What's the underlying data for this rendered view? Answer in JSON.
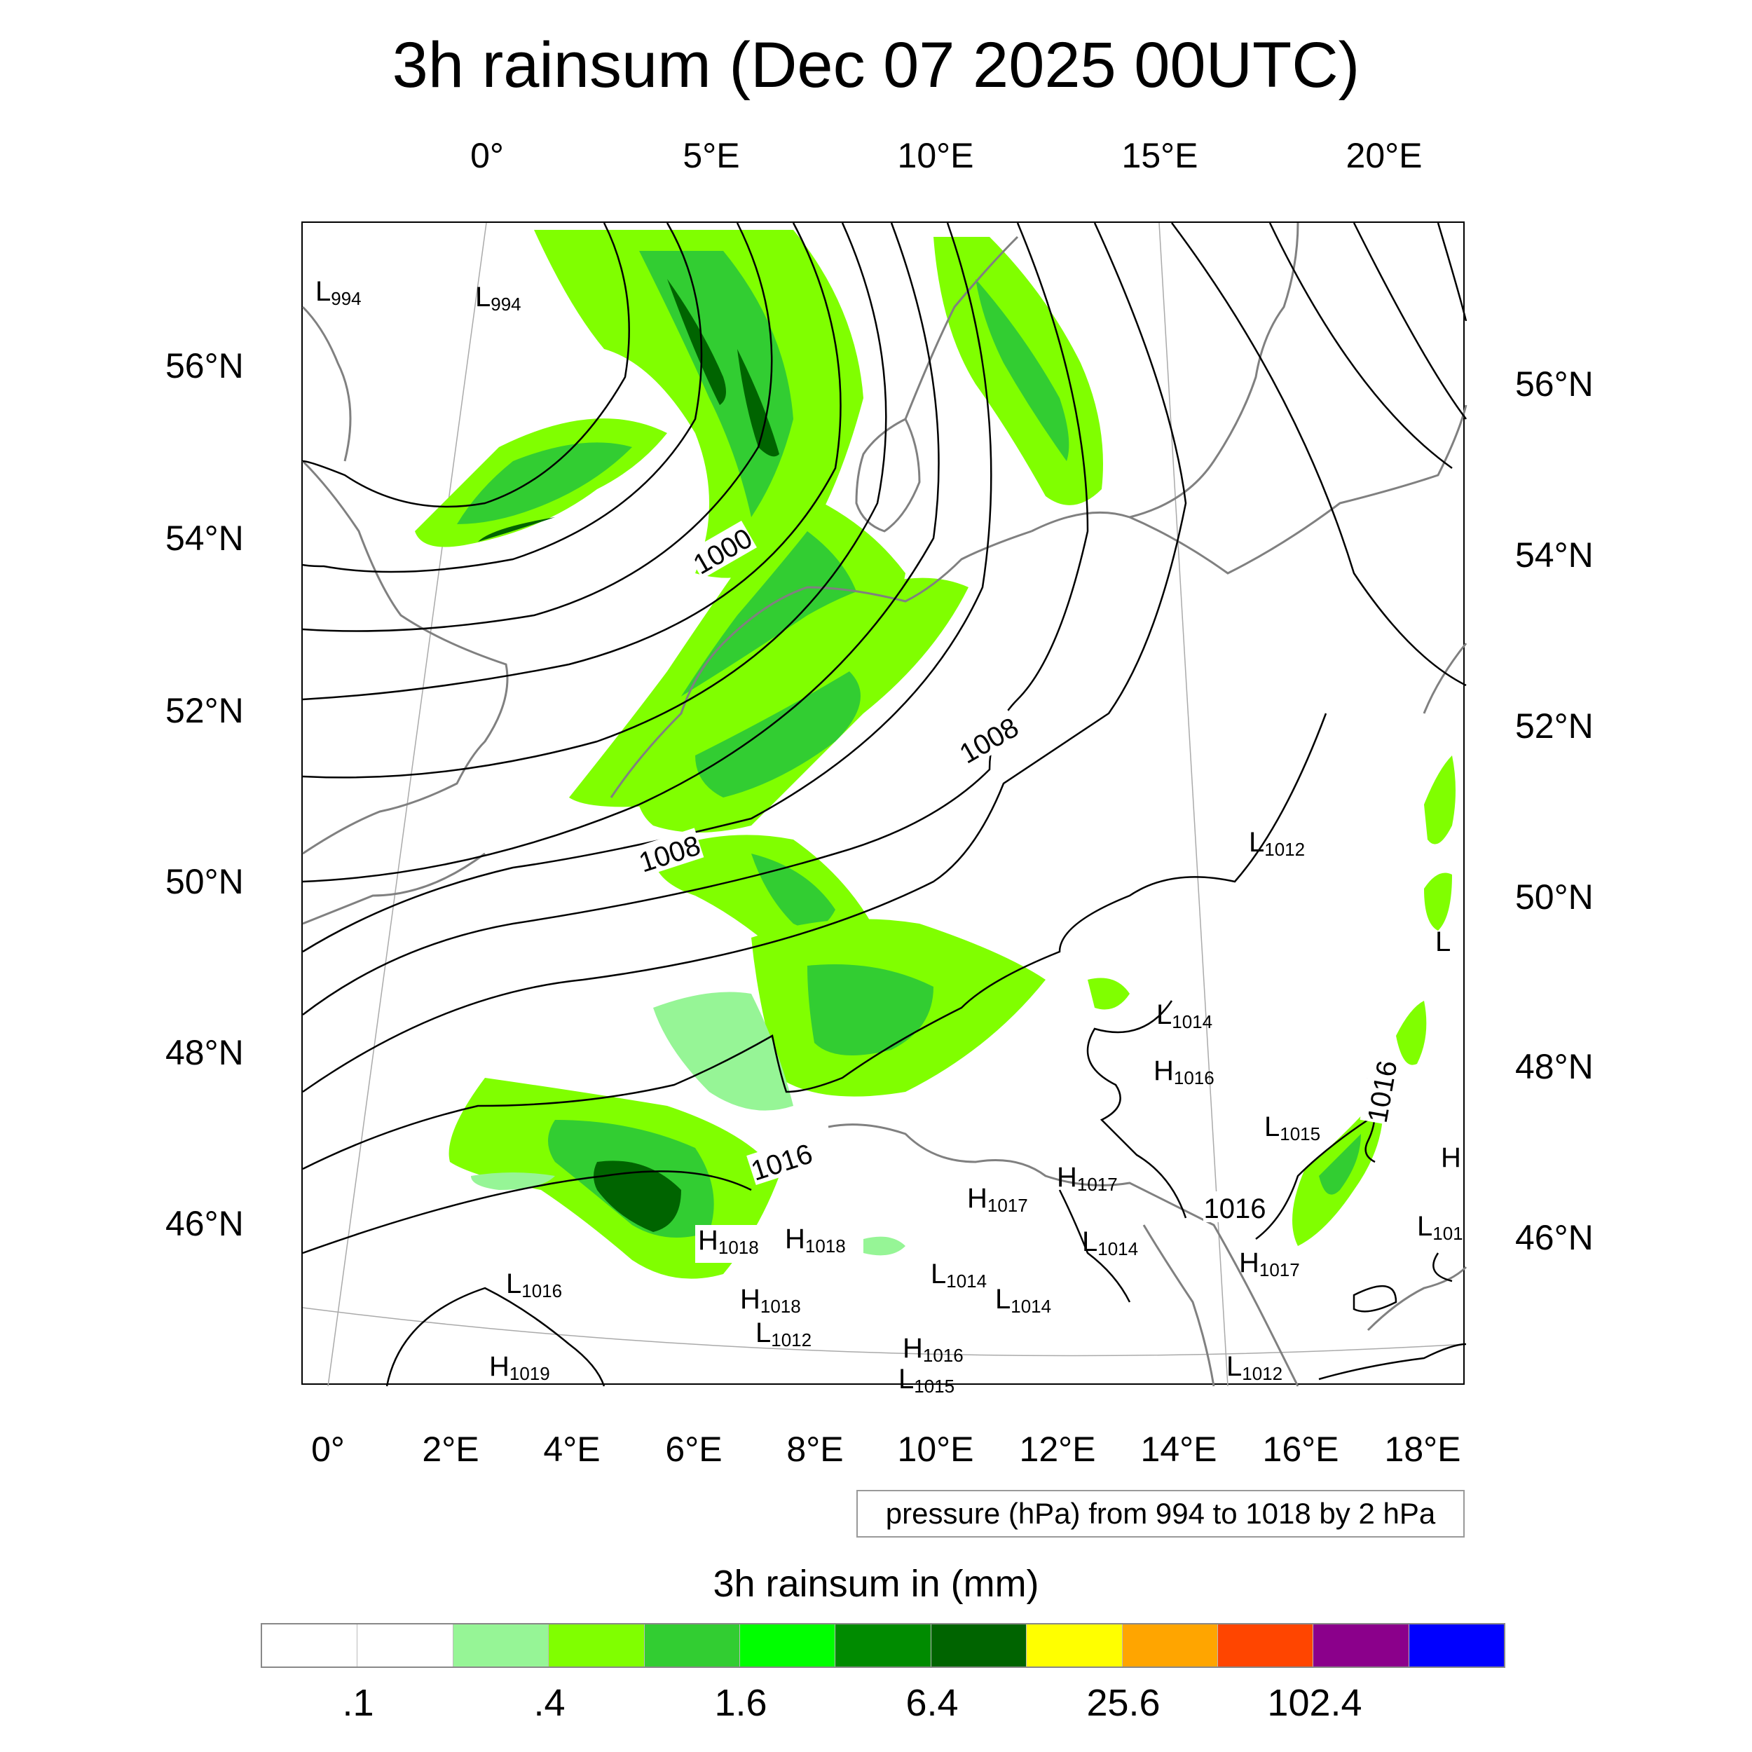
{
  "title": "3h rainsum (Dec 07 2025 00UTC)",
  "top_longitudes": [
    "0°",
    "5°E",
    "10°E",
    "15°E",
    "20°E"
  ],
  "bottom_longitudes": [
    "0°",
    "2°E",
    "4°E",
    "6°E",
    "8°E",
    "10°E",
    "12°E",
    "14°E",
    "16°E",
    "18°E"
  ],
  "left_latitudes": [
    "56°N",
    "54°N",
    "52°N",
    "50°N",
    "48°N",
    "46°N"
  ],
  "right_latitudes": [
    "56°N",
    "54°N",
    "52°N",
    "50°N",
    "48°N",
    "46°N"
  ],
  "isobar_labels": [
    "1000",
    "1008",
    "1008",
    "1016",
    "1016",
    "1016"
  ],
  "pressure_centers": [
    {
      "type": "L",
      "value": "994"
    },
    {
      "type": "L",
      "value": "994"
    },
    {
      "type": "L",
      "value": "1012"
    },
    {
      "type": "L",
      "value": ""
    },
    {
      "type": "L",
      "value": "1014"
    },
    {
      "type": "H",
      "value": "1016"
    },
    {
      "type": "L",
      "value": "1015"
    },
    {
      "type": "H",
      "value": ""
    },
    {
      "type": "H",
      "value": "1017"
    },
    {
      "type": "H",
      "value": "1017"
    },
    {
      "type": "L",
      "value": "1014"
    },
    {
      "type": "L",
      "value": "101"
    },
    {
      "type": "H",
      "value": "1018"
    },
    {
      "type": "H",
      "value": "1018"
    },
    {
      "type": "H",
      "value": "1017"
    },
    {
      "type": "L",
      "value": "1014"
    },
    {
      "type": "L",
      "value": "1014"
    },
    {
      "type": "L",
      "value": "1016"
    },
    {
      "type": "H",
      "value": "1018"
    },
    {
      "type": "L",
      "value": "1012"
    },
    {
      "type": "H",
      "value": "1016"
    },
    {
      "type": "L",
      "value": "1015"
    },
    {
      "type": "H",
      "value": "1019"
    },
    {
      "type": "L",
      "value": "1012"
    }
  ],
  "contour_note": "pressure (hPa) from 994 to 1018 by 2 hPa",
  "colorbar": {
    "title": "3h rainsum in (mm)",
    "colors": [
      "#ffffff",
      "#ffffff",
      "#96f596",
      "#80ff00",
      "#32cd32",
      "#00ff00",
      "#008b00",
      "#006400",
      "#ffff00",
      "#ffa500",
      "#ff4500",
      "#8b008b",
      "#0000ff"
    ],
    "ticks": [
      ".1",
      ".4",
      "1.6",
      "6.4",
      "25.6",
      "102.4"
    ]
  },
  "map_colors": {
    "coast": "#808080",
    "isobar": "#000000",
    "graticule": "#aaaaaa"
  }
}
